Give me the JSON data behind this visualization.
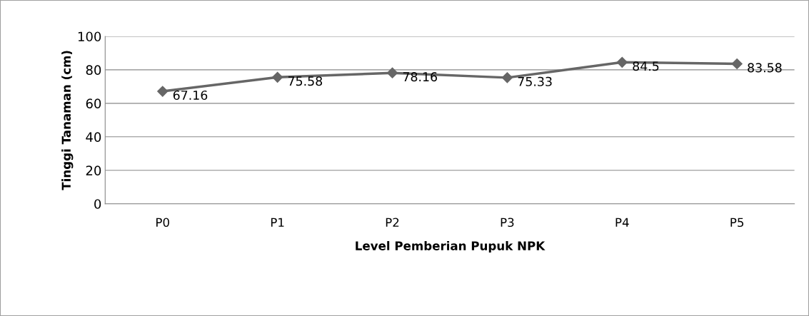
{
  "chart_data": {
    "type": "line",
    "xlabel": "Level Pemberian Pupuk NPK",
    "ylabel": "Tinggi Tanaman (cm)",
    "categories": [
      "P0",
      "P1",
      "P2",
      "P3",
      "P4",
      "P5"
    ],
    "series": [
      {
        "color": "#666666",
        "values": [
          67.16,
          75.58,
          78.16,
          75.33,
          84.5,
          83.58
        ]
      }
    ],
    "ylim": [
      0,
      100
    ],
    "yticks": [
      0,
      20,
      40,
      60,
      80,
      100
    ],
    "grid": "y",
    "marker": "diamond",
    "line_style": "solid",
    "data_labels": true,
    "legend": false
  }
}
